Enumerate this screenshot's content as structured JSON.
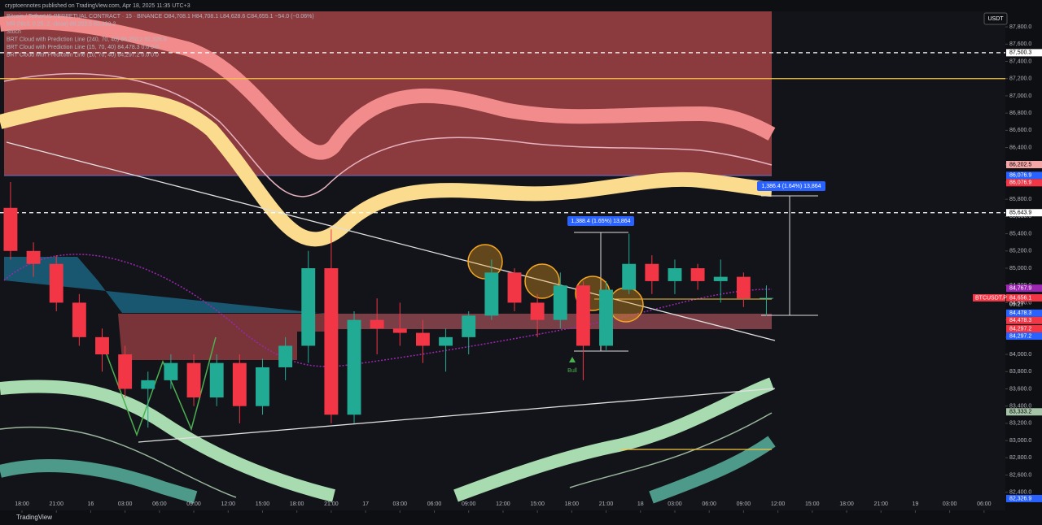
{
  "chart_data": {
    "type": "candlestick",
    "publisher": "cryptoennotes published on TradingView.com, Apr 18, 2025 11:35 UTC+3",
    "legend_lines": [
      "Bitcoin / TetherUS PERPETUAL CONTRACT · 15 · BINANCE  O84,708.1 H84,708.1 L84,628.6 C84,655.1 −54.0 (−0.06%)",
      "MR (hlc3, 0.25, 2, close)  86,202.5  83,333.2",
      "Stoch",
      "BRT Cloud with Prediction Line (240, 70, 40)  86,250.2  82,326.9",
      "BRT Cloud with Prediction Line (15, 70, 40)  84,478.3  0.0  0.0",
      "BRT Cloud with Prediction Line (10, 70, 40)  84,297.2  0.0  0.0"
    ],
    "currency": "USDT",
    "footer": "TradingView",
    "x": [
      -2,
      0,
      2,
      4,
      6,
      8,
      10,
      12,
      14,
      16,
      18,
      20,
      22,
      24,
      26,
      28,
      30,
      32,
      34,
      36,
      38,
      40,
      42,
      44,
      46,
      48,
      50,
      52,
      54,
      56,
      58,
      60,
      62,
      64
    ],
    "open": [
      85700,
      85200,
      85050,
      84600,
      84200,
      84000,
      83600,
      83700,
      83900,
      83500,
      83900,
      83400,
      83850,
      84100,
      85000,
      83300,
      84400,
      84300,
      84250,
      84100,
      84200,
      84450,
      84950,
      84600,
      84400,
      84800,
      84100,
      84750,
      85050,
      84850,
      85000,
      84850,
      84900,
      84650
    ],
    "high": [
      86000,
      85300,
      85150,
      84700,
      84300,
      84100,
      83800,
      84000,
      84000,
      84000,
      84000,
      83950,
      84200,
      85200,
      85450,
      84500,
      84650,
      84600,
      84400,
      84300,
      84500,
      85100,
      85000,
      84700,
      84950,
      84850,
      84850,
      85400,
      85150,
      85100,
      85050,
      85100,
      84950,
      84800
    ],
    "low": [
      85100,
      84900,
      84500,
      84100,
      83800,
      83500,
      83150,
      83600,
      83400,
      83400,
      83200,
      83300,
      83700,
      83900,
      83200,
      83200,
      84000,
      84100,
      83900,
      83800,
      84000,
      84400,
      84500,
      84200,
      84300,
      83700,
      84050,
      84700,
      84700,
      84700,
      84750,
      84600,
      84550,
      84450
    ],
    "close": [
      85200,
      85050,
      84600,
      84200,
      84000,
      83600,
      83700,
      83900,
      83500,
      83900,
      83400,
      83850,
      84100,
      85000,
      83300,
      84400,
      84300,
      84250,
      84100,
      84200,
      84450,
      84950,
      84600,
      84400,
      84800,
      84100,
      84750,
      85050,
      84850,
      85000,
      84850,
      84900,
      84650,
      84655
    ],
    "up_color": "#22ab94",
    "down_color": "#f23645",
    "xlim": [
      -1.92,
      85.86
    ],
    "xticks": [
      {
        "value": 0,
        "label": "18:00"
      },
      {
        "value": 3,
        "label": "21:00"
      },
      {
        "value": 6,
        "label": "16"
      },
      {
        "value": 9,
        "label": "03:00"
      },
      {
        "value": 12,
        "label": "06:00"
      },
      {
        "value": 15,
        "label": "09:00"
      },
      {
        "value": 18,
        "label": "12:00"
      },
      {
        "value": 21,
        "label": "15:00"
      },
      {
        "value": 24,
        "label": "18:00"
      },
      {
        "value": 27,
        "label": "21:00"
      },
      {
        "value": 30,
        "label": "17"
      },
      {
        "value": 33,
        "label": "03:00"
      },
      {
        "value": 36,
        "label": "06:00"
      },
      {
        "value": 39,
        "label": "09:00"
      },
      {
        "value": 42,
        "label": "12:00"
      },
      {
        "value": 45,
        "label": "15:00"
      },
      {
        "value": 48,
        "label": "18:00"
      },
      {
        "value": 51,
        "label": "21:00"
      },
      {
        "value": 54,
        "label": "18"
      },
      {
        "value": 57,
        "label": "03:00"
      },
      {
        "value": 60,
        "label": "06:00"
      },
      {
        "value": 63,
        "label": "09:00"
      },
      {
        "value": 66,
        "label": "12:00"
      },
      {
        "value": 69,
        "label": "15:00"
      },
      {
        "value": 72,
        "label": "18:00"
      },
      {
        "value": 75,
        "label": "21:00"
      },
      {
        "value": 78,
        "label": "19"
      },
      {
        "value": 81,
        "label": "03:00"
      },
      {
        "value": 84,
        "label": "06:00"
      }
    ],
    "ylim": [
      82190,
      87980
    ],
    "yticks": [
      {
        "value": 82400,
        "label": "82,400.0"
      },
      {
        "value": 82600,
        "label": "82,600.0"
      },
      {
        "value": 82800,
        "label": "82,800.0"
      },
      {
        "value": 83000,
        "label": "83,000.0"
      },
      {
        "value": 83200,
        "label": "83,200.0"
      },
      {
        "value": 83400,
        "label": "83,400.0"
      },
      {
        "value": 83600,
        "label": "83,600.0"
      },
      {
        "value": 83800,
        "label": "83,800.0"
      },
      {
        "value": 84000,
        "label": "84,000.0"
      },
      {
        "value": 84200,
        "label": "84,200.0"
      },
      {
        "value": 84400,
        "label": "84,400.0"
      },
      {
        "value": 84600,
        "label": "84,600.0"
      },
      {
        "value": 84800,
        "label": "84,800.0"
      },
      {
        "value": 85000,
        "label": "85,000.0"
      },
      {
        "value": 85200,
        "label": "85,200.0"
      },
      {
        "value": 85400,
        "label": "85,400.0"
      },
      {
        "value": 85600,
        "label": "85,600.0"
      },
      {
        "value": 85800,
        "label": "85,800.0"
      },
      {
        "value": 86000,
        "label": "86,000.0"
      },
      {
        "value": 86200,
        "label": "86,200.0"
      },
      {
        "value": 86400,
        "label": "86,400.0"
      },
      {
        "value": 86600,
        "label": "86,600.0"
      },
      {
        "value": 86800,
        "label": "86,800.0"
      },
      {
        "value": 87000,
        "label": "87,000.0"
      },
      {
        "value": 87200,
        "label": "87,200.0"
      },
      {
        "value": 87400,
        "label": "87,400.0"
      },
      {
        "value": 87600,
        "label": "87,600.0"
      },
      {
        "value": 87800,
        "label": "87,800.0"
      }
    ],
    "levels": [
      {
        "value": 87500.3,
        "color": "#ffffff",
        "dash": true
      },
      {
        "value": 85643.9,
        "color": "#ffffff",
        "dash": true
      },
      {
        "value": 87200,
        "color": "#f5c542",
        "dash": false
      }
    ],
    "price_labels": [
      {
        "value": 87500.3,
        "label": "87,500.3",
        "color": "#ffffff"
      },
      {
        "value": 86202.5,
        "label": "86,202.5",
        "color": "#f4a6a6"
      },
      {
        "value": 86076.9,
        "label": "86,076.9",
        "color": "#2962ff"
      },
      {
        "value": 86076.9,
        "label": "86,076.9",
        "color": "#f23645"
      },
      {
        "value": 85643.9,
        "label": "85,643.9",
        "color": "#ffffff"
      },
      {
        "value": 84767.9,
        "label": "84,767.9",
        "color": "#9c27b0"
      },
      {
        "value": 84656.1,
        "label": "84,656.1",
        "color": "#f23645"
      },
      {
        "value": 84478.3,
        "label": "84,478.3",
        "color": "#2962ff"
      },
      {
        "value": 84478.3,
        "label": "84,478.3",
        "color": "#f23645"
      },
      {
        "value": 84297.2,
        "label": "84,297.2",
        "color": "#f23645"
      },
      {
        "value": 84297.2,
        "label": "84,297.2",
        "color": "#2962ff"
      },
      {
        "value": 83333.2,
        "label": "83,333.2",
        "color": "#a5c4a8"
      },
      {
        "value": 82326.9,
        "label": "82,326.9",
        "color": "#2962ff"
      }
    ],
    "countdown": "09:27",
    "symbol_tag": "BTCUSDT.P",
    "measures": [
      "1,388.4 (1.65%) 13,864",
      "1,386.4 (1.64%) 13,864"
    ],
    "signal": "Bull"
  }
}
